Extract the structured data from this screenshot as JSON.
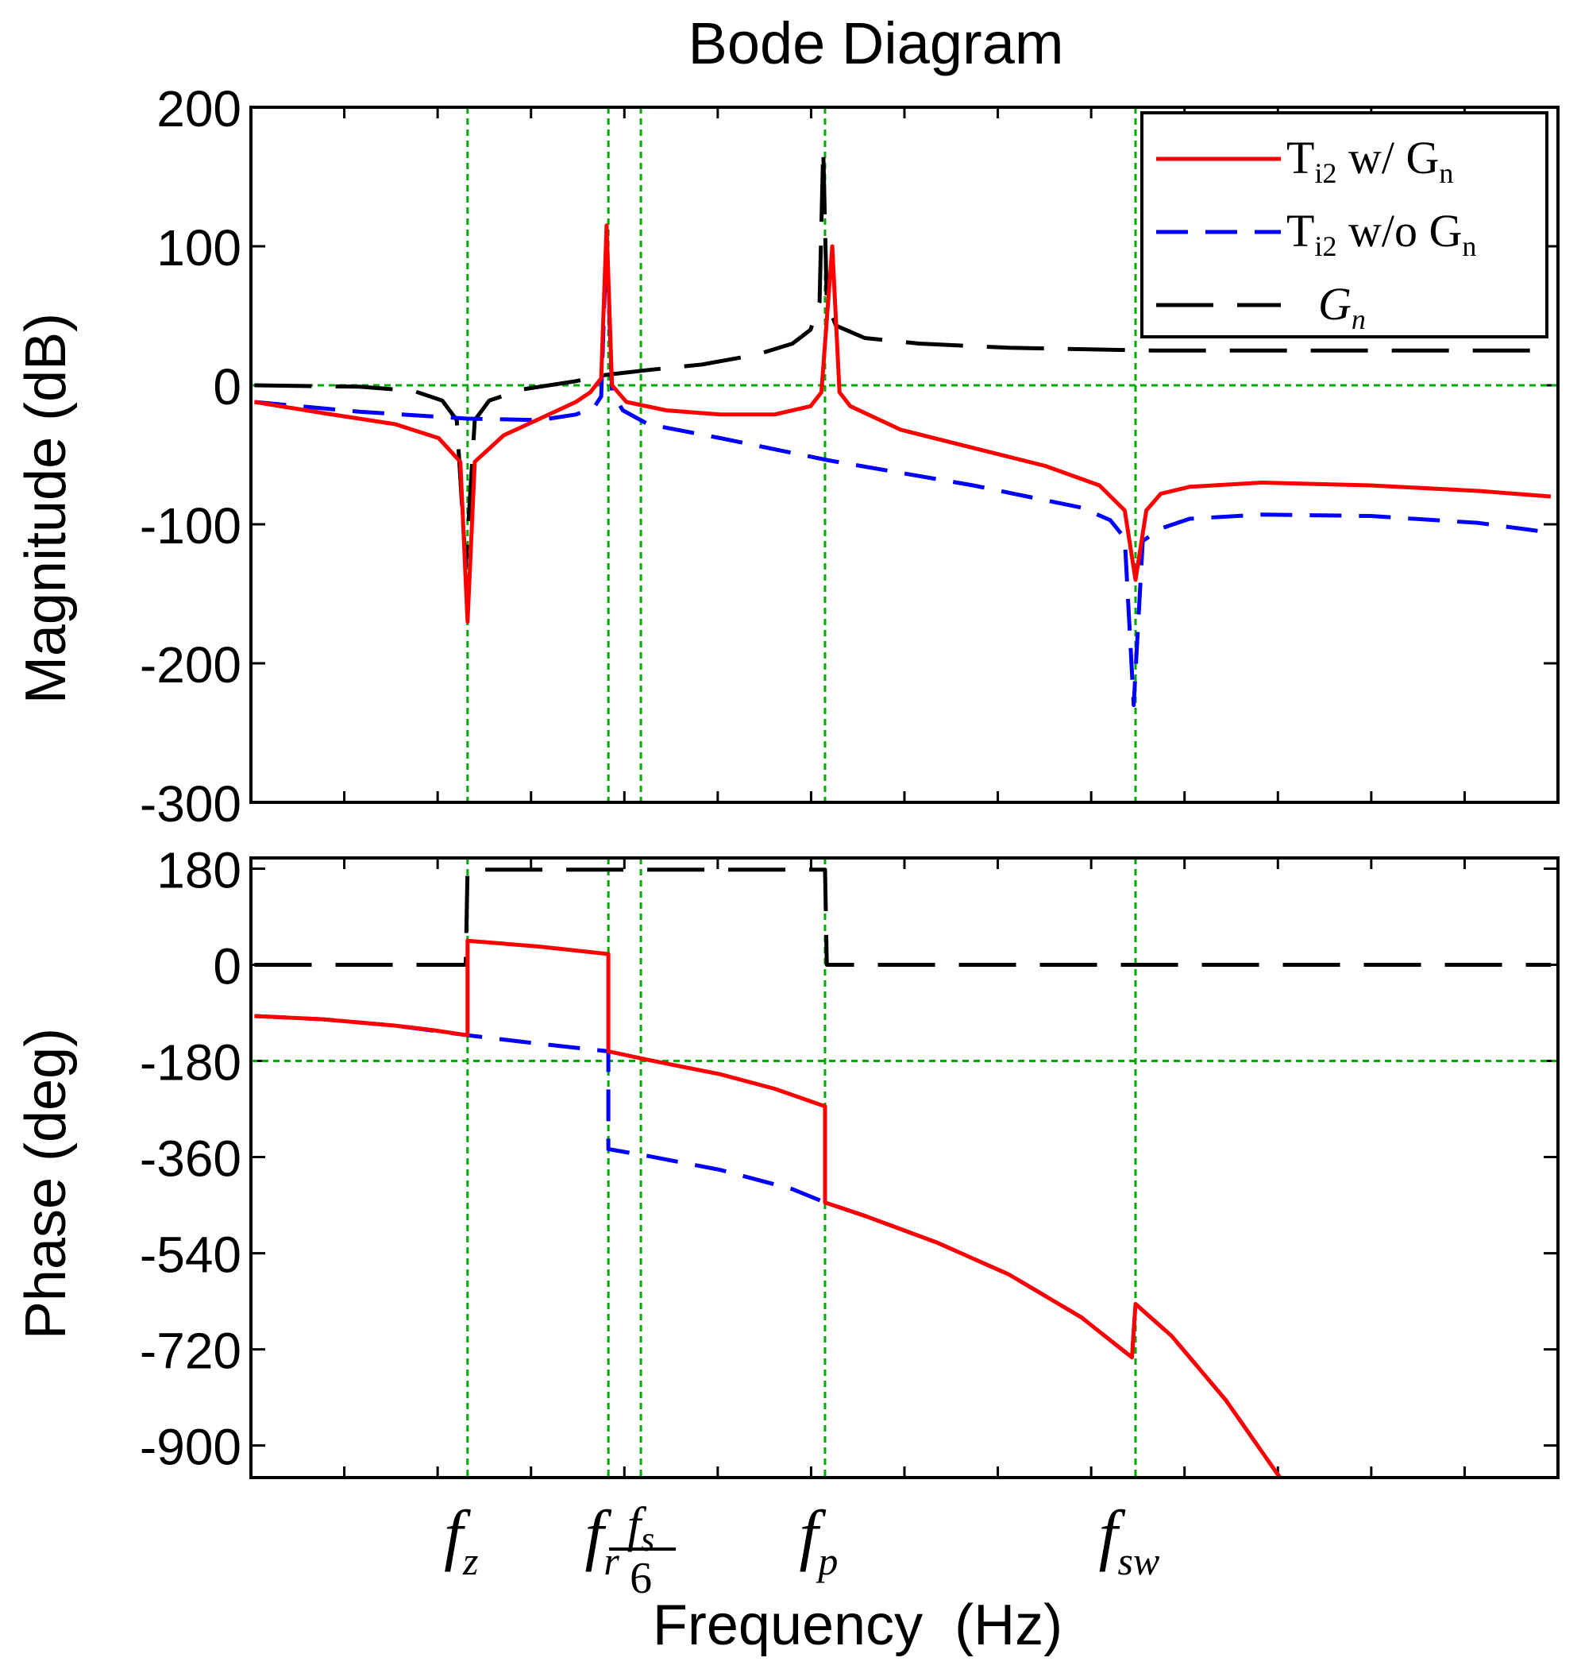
{
  "chart_data": {
    "type": "line",
    "title": "Bode Diagram",
    "xlabel": "Frequency  (Hz)",
    "x_scale": "log",
    "x_tick_labels": [
      {
        "name": "f-z",
        "base": "f",
        "sub": "z"
      },
      {
        "name": "f-r",
        "base": "f",
        "sub": "r"
      },
      {
        "name": "f-s-over-6",
        "base": "f",
        "sub": "s",
        "denominator": "6"
      },
      {
        "name": "f-p",
        "base": "f",
        "sub": "p"
      },
      {
        "name": "f-sw",
        "base": "f",
        "sub": "sw"
      }
    ],
    "magnitude": {
      "ylabel": "Magnitude (dB)",
      "ylim": [
        -300,
        200
      ],
      "yticks": [
        -300,
        -200,
        -100,
        0,
        100,
        200
      ],
      "series": [
        {
          "name": "Ti2 w/ Gn",
          "color": "#ff0000",
          "dash": "solid",
          "points": [
            [
              0.01,
              -12
            ],
            [
              0.2,
              -20
            ],
            [
              0.4,
              -28
            ],
            [
              0.52,
              -38
            ],
            [
              0.58,
              -55
            ],
            [
              0.6,
              -170
            ],
            [
              0.62,
              -55
            ],
            [
              0.7,
              -36
            ],
            [
              0.8,
              -24
            ],
            [
              0.9,
              -12
            ],
            [
              0.94,
              -5
            ],
            [
              0.97,
              5
            ],
            [
              0.985,
              115
            ],
            [
              1.0,
              0
            ],
            [
              1.04,
              -12
            ],
            [
              1.15,
              -18
            ],
            [
              1.3,
              -21
            ],
            [
              1.45,
              -21
            ],
            [
              1.55,
              -15
            ],
            [
              1.58,
              -5
            ],
            [
              1.61,
              100
            ],
            [
              1.63,
              -5
            ],
            [
              1.66,
              -15
            ],
            [
              1.8,
              -32
            ],
            [
              2.0,
              -45
            ],
            [
              2.2,
              -58
            ],
            [
              2.35,
              -72
            ],
            [
              2.42,
              -90
            ],
            [
              2.45,
              -140
            ],
            [
              2.48,
              -90
            ],
            [
              2.52,
              -78
            ],
            [
              2.6,
              -73
            ],
            [
              2.8,
              -70
            ],
            [
              3.1,
              -72
            ],
            [
              3.4,
              -76
            ],
            [
              3.6,
              -80
            ]
          ]
        },
        {
          "name": "Ti2 w/o Gn",
          "color": "#0000ff",
          "dash": "dashed",
          "points": [
            [
              0.01,
              -12
            ],
            [
              0.3,
              -19
            ],
            [
              0.6,
              -24
            ],
            [
              0.8,
              -25
            ],
            [
              0.9,
              -21
            ],
            [
              0.95,
              -16
            ],
            [
              0.97,
              -8
            ],
            [
              0.985,
              108
            ],
            [
              1.0,
              -5
            ],
            [
              1.03,
              -18
            ],
            [
              1.1,
              -28
            ],
            [
              1.3,
              -38
            ],
            [
              1.6,
              -54
            ],
            [
              2.0,
              -72
            ],
            [
              2.3,
              -88
            ],
            [
              2.38,
              -97
            ],
            [
              2.42,
              -110
            ],
            [
              2.445,
              -230
            ],
            [
              2.47,
              -112
            ],
            [
              2.52,
              -103
            ],
            [
              2.6,
              -96
            ],
            [
              2.8,
              -93
            ],
            [
              3.1,
              -94
            ],
            [
              3.4,
              -99
            ],
            [
              3.6,
              -106
            ]
          ]
        },
        {
          "name": "Gn",
          "color": "#000000",
          "dash": "longdash",
          "points": [
            [
              0.01,
              0
            ],
            [
              0.3,
              -1
            ],
            [
              0.45,
              -4
            ],
            [
              0.53,
              -11
            ],
            [
              0.57,
              -25
            ],
            [
              0.595,
              -130
            ],
            [
              0.62,
              -25
            ],
            [
              0.66,
              -11
            ],
            [
              0.75,
              -3
            ],
            [
              0.9,
              3
            ],
            [
              0.97,
              7
            ],
            [
              1.0,
              8
            ],
            [
              1.1,
              11
            ],
            [
              1.25,
              15
            ],
            [
              1.4,
              22
            ],
            [
              1.5,
              30
            ],
            [
              1.55,
              40
            ],
            [
              1.575,
              60
            ],
            [
              1.585,
              170
            ],
            [
              1.595,
              60
            ],
            [
              1.62,
              43
            ],
            [
              1.7,
              34
            ],
            [
              1.85,
              30
            ],
            [
              2.1,
              27
            ],
            [
              2.5,
              25
            ],
            [
              3.0,
              25
            ],
            [
              3.6,
              25
            ]
          ]
        }
      ]
    },
    "phase": {
      "ylabel": "Phase (deg)",
      "ylim": [
        -960,
        200
      ],
      "yticks": [
        -900,
        -720,
        -540,
        -360,
        -180,
        0,
        180
      ],
      "series": [
        {
          "name": "Ti2 w/ Gn",
          "color": "#ff0000",
          "dash": "solid",
          "points": [
            [
              0.01,
              -96
            ],
            [
              0.2,
              -102
            ],
            [
              0.4,
              -114
            ],
            [
              0.5,
              -122
            ],
            [
              0.6,
              -132
            ],
            [
              0.6,
              45
            ],
            [
              0.8,
              34
            ],
            [
              0.99,
              20
            ],
            [
              0.99,
              -162
            ],
            [
              1.1,
              -178
            ],
            [
              1.3,
              -205
            ],
            [
              1.45,
              -232
            ],
            [
              1.59,
              -265
            ],
            [
              1.59,
              -445
            ],
            [
              1.7,
              -470
            ],
            [
              1.9,
              -520
            ],
            [
              2.1,
              -580
            ],
            [
              2.3,
              -660
            ],
            [
              2.44,
              -735
            ],
            [
              2.45,
              -635
            ],
            [
              2.55,
              -695
            ],
            [
              2.7,
              -815
            ],
            [
              2.85,
              -960
            ]
          ]
        },
        {
          "name": "Ti2 w/o Gn",
          "color": "#0000ff",
          "dash": "dashed",
          "points": [
            [
              0.01,
              -96
            ],
            [
              0.2,
              -102
            ],
            [
              0.4,
              -114
            ],
            [
              0.6,
              -132
            ],
            [
              0.8,
              -148
            ],
            [
              0.99,
              -162
            ],
            [
              0.99,
              -345
            ],
            [
              1.1,
              -358
            ],
            [
              1.3,
              -384
            ],
            [
              1.5,
              -420
            ],
            [
              1.59,
              -445
            ],
            [
              1.7,
              -470
            ],
            [
              1.9,
              -520
            ],
            [
              2.1,
              -580
            ],
            [
              2.3,
              -660
            ],
            [
              2.44,
              -735
            ],
            [
              2.45,
              -635
            ],
            [
              2.55,
              -695
            ],
            [
              2.7,
              -815
            ],
            [
              2.85,
              -960
            ]
          ]
        },
        {
          "name": "Gn",
          "color": "#000000",
          "dash": "longdash",
          "points": [
            [
              0.01,
              0
            ],
            [
              0.595,
              0
            ],
            [
              0.6,
              178
            ],
            [
              1.59,
              178
            ],
            [
              1.595,
              0
            ],
            [
              3.6,
              0
            ]
          ]
        }
      ]
    },
    "reference_lines": {
      "color": "#00aa00",
      "vertical_x": [
        0.6,
        0.99,
        1.08,
        1.59,
        2.45
      ],
      "magnitude_horizontal": [
        0
      ],
      "phase_horizontal": [
        -180
      ]
    },
    "legend": {
      "placement": "top-right",
      "entries": [
        {
          "base": "T",
          "sub": "i2",
          "text": " w/ ",
          "base2": "G",
          "sub2": "n"
        },
        {
          "base": "T",
          "sub": "i2",
          "text": " w/o ",
          "base2": "G",
          "sub2": "n"
        },
        {
          "base": "",
          "sub": "",
          "text": "",
          "base2": "G",
          "sub2": "n"
        }
      ]
    },
    "grid": false
  }
}
